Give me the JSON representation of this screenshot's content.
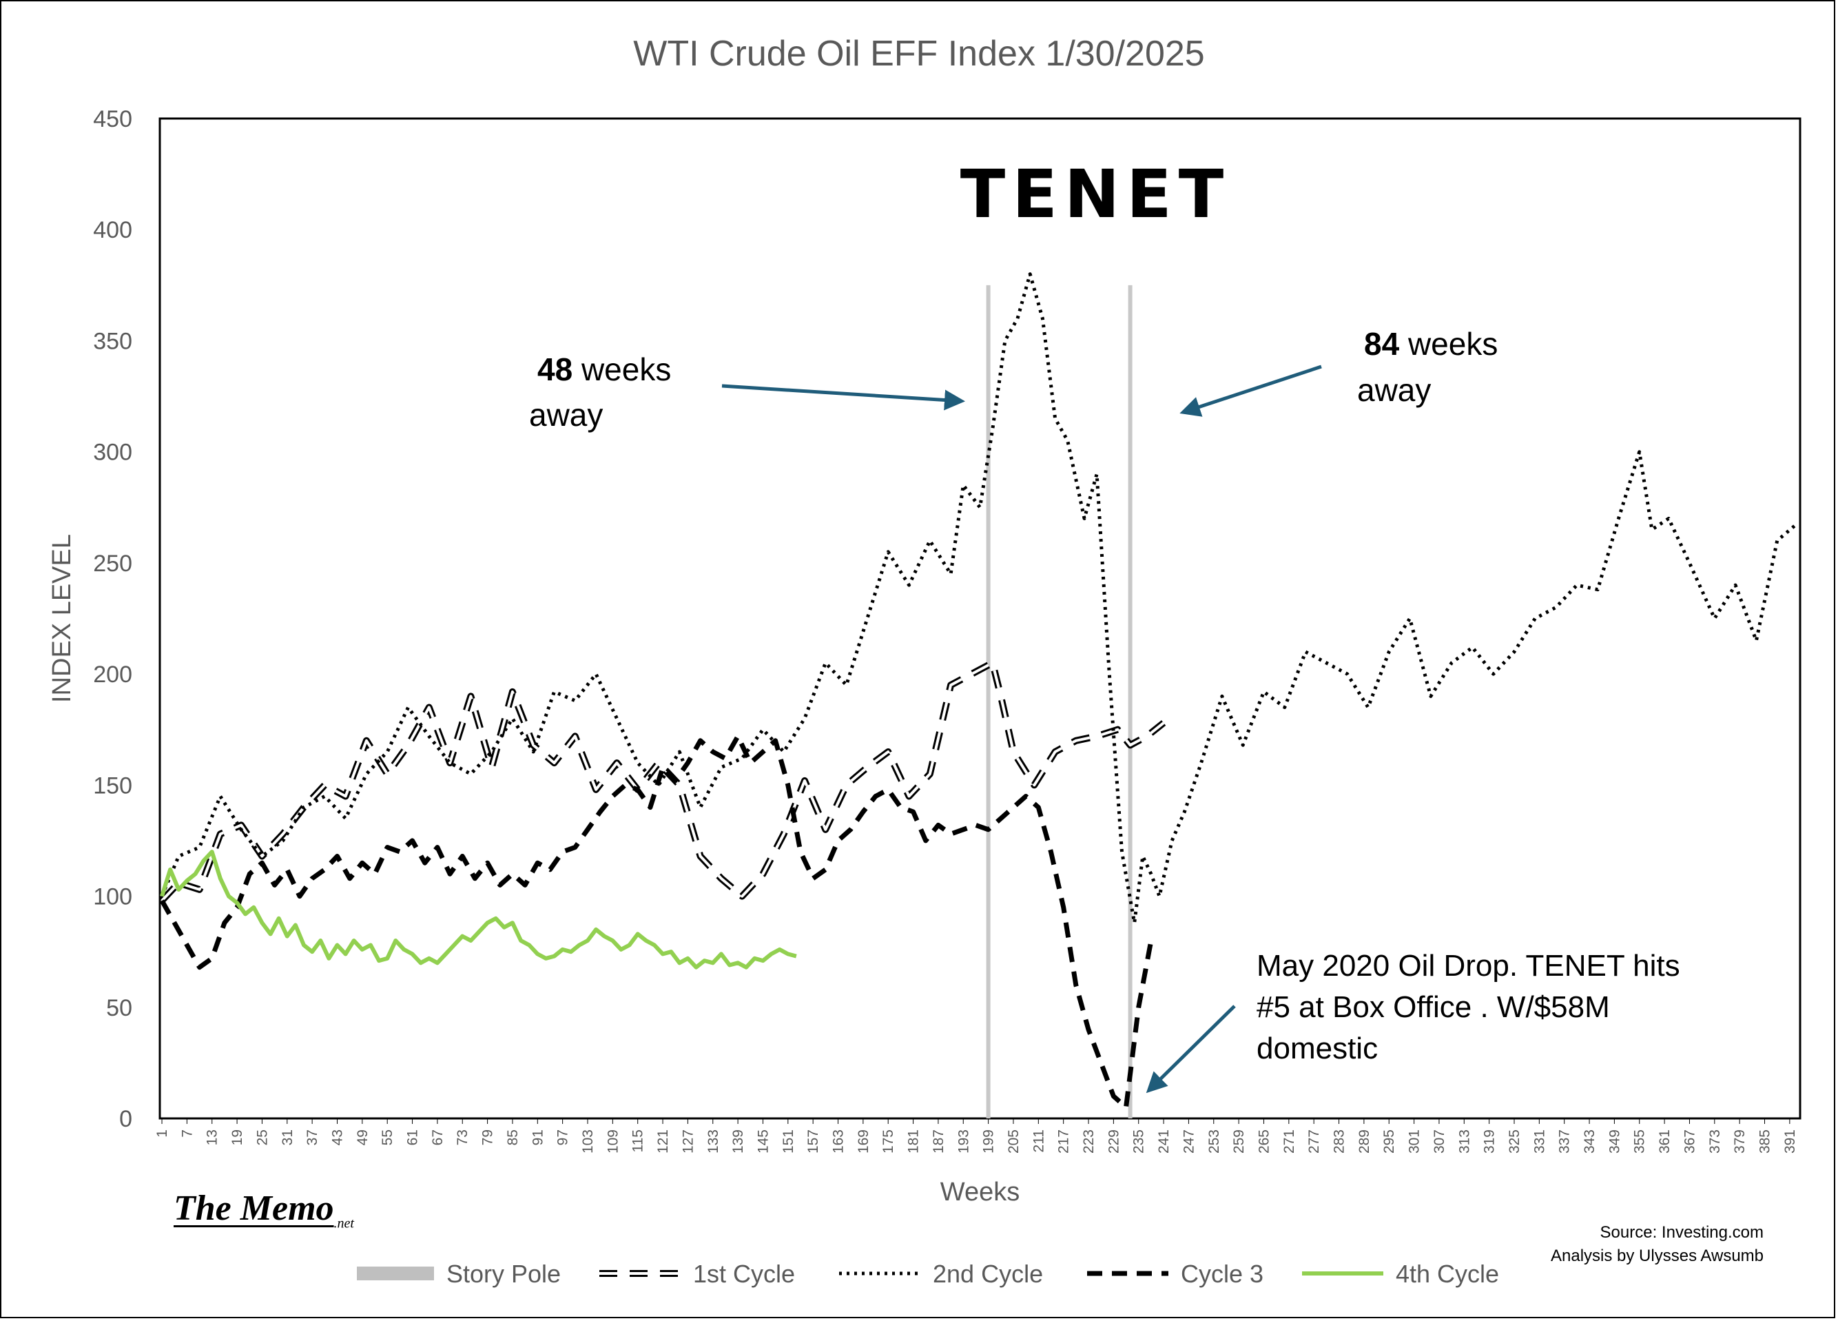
{
  "chart_data": {
    "type": "line",
    "title": "WTI Crude Oil EFF Index 1/30/2025",
    "xlabel": "Weeks",
    "ylabel": "INDEX LEVEL",
    "xlim": [
      1,
      393
    ],
    "ylim": [
      0,
      450
    ],
    "yticks": [
      0,
      50,
      100,
      150,
      200,
      250,
      300,
      350,
      400,
      450
    ],
    "xticks": [
      1,
      7,
      13,
      19,
      25,
      31,
      37,
      43,
      49,
      55,
      61,
      67,
      73,
      79,
      85,
      91,
      97,
      103,
      109,
      115,
      121,
      127,
      133,
      139,
      145,
      151,
      157,
      163,
      169,
      175,
      181,
      187,
      193,
      199,
      205,
      211,
      217,
      223,
      229,
      235,
      241,
      247,
      253,
      259,
      265,
      271,
      277,
      283,
      289,
      295,
      301,
      307,
      313,
      319,
      325,
      331,
      337,
      343,
      349,
      355,
      361,
      367,
      373,
      379,
      385,
      391
    ],
    "legend_position": "bottom",
    "grid": false,
    "story_poles": [
      199,
      233
    ],
    "series": [
      {
        "name": "1st Cycle",
        "color": "#000000",
        "style": "long-dash-hollow",
        "x": [
          1,
          5,
          10,
          15,
          20,
          25,
          30,
          35,
          40,
          45,
          50,
          55,
          60,
          65,
          70,
          75,
          80,
          85,
          90,
          95,
          100,
          105,
          110,
          115,
          120,
          125,
          130,
          135,
          140,
          145,
          150,
          155,
          160,
          165,
          170,
          175,
          180,
          185,
          190,
          195,
          200,
          202,
          205,
          210,
          215,
          220,
          225,
          230,
          233,
          237,
          241
        ],
        "y": [
          98,
          106,
          103,
          128,
          132,
          118,
          128,
          140,
          150,
          145,
          170,
          155,
          168,
          185,
          160,
          190,
          158,
          192,
          168,
          160,
          172,
          148,
          160,
          148,
          160,
          150,
          118,
          108,
          100,
          110,
          128,
          152,
          130,
          150,
          158,
          165,
          145,
          155,
          195,
          200,
          205,
          190,
          165,
          150,
          165,
          170,
          172,
          175,
          168,
          172,
          178
        ]
      },
      {
        "name": "2nd Cycle",
        "color": "#000000",
        "style": "dotted",
        "x": [
          1,
          5,
          10,
          15,
          20,
          25,
          30,
          35,
          40,
          45,
          50,
          55,
          60,
          65,
          70,
          75,
          80,
          85,
          90,
          95,
          100,
          105,
          110,
          115,
          120,
          125,
          130,
          135,
          140,
          145,
          150,
          155,
          160,
          165,
          170,
          175,
          180,
          185,
          190,
          193,
          197,
          200,
          203,
          206,
          209,
          212,
          215,
          218,
          222,
          225,
          228,
          231,
          234,
          236,
          238,
          240,
          243,
          246,
          250,
          255,
          260,
          265,
          270,
          275,
          280,
          285,
          290,
          295,
          300,
          305,
          310,
          315,
          320,
          325,
          330,
          335,
          340,
          345,
          350,
          355,
          358,
          362,
          367,
          373,
          378,
          383,
          388,
          393
        ],
        "y": [
          100,
          118,
          122,
          145,
          130,
          118,
          125,
          140,
          145,
          135,
          155,
          165,
          185,
          172,
          160,
          155,
          165,
          180,
          165,
          192,
          188,
          200,
          180,
          160,
          150,
          165,
          140,
          158,
          162,
          175,
          165,
          180,
          205,
          195,
          225,
          255,
          240,
          260,
          245,
          285,
          275,
          310,
          350,
          360,
          380,
          360,
          315,
          305,
          270,
          290,
          200,
          120,
          88,
          118,
          110,
          100,
          125,
          138,
          160,
          190,
          168,
          192,
          185,
          210,
          205,
          200,
          185,
          210,
          225,
          190,
          205,
          212,
          200,
          210,
          225,
          230,
          240,
          238,
          270,
          300,
          265,
          270,
          250,
          225,
          240,
          215,
          260,
          268
        ]
      },
      {
        "name": "Cycle 3",
        "color": "#000000",
        "style": "dashed-bold",
        "x": [
          1,
          4,
          7,
          10,
          13,
          16,
          19,
          22,
          25,
          28,
          31,
          34,
          37,
          40,
          43,
          46,
          49,
          52,
          55,
          58,
          61,
          64,
          67,
          70,
          73,
          76,
          79,
          82,
          85,
          88,
          91,
          94,
          97,
          100,
          103,
          106,
          109,
          112,
          115,
          118,
          121,
          124,
          127,
          130,
          133,
          136,
          139,
          142,
          145,
          148,
          151,
          154,
          157,
          160,
          163,
          166,
          169,
          172,
          175,
          178,
          181,
          184,
          187,
          190,
          193,
          196,
          199,
          202,
          205,
          208,
          211,
          214,
          217,
          220,
          223,
          226,
          229,
          232,
          235,
          238
        ],
        "y": [
          98,
          88,
          78,
          68,
          72,
          88,
          95,
          110,
          115,
          105,
          112,
          100,
          108,
          112,
          118,
          108,
          115,
          110,
          122,
          120,
          125,
          115,
          122,
          110,
          118,
          108,
          115,
          105,
          110,
          105,
          115,
          112,
          120,
          122,
          130,
          138,
          145,
          150,
          148,
          140,
          158,
          152,
          160,
          170,
          165,
          162,
          172,
          160,
          165,
          170,
          150,
          120,
          108,
          112,
          125,
          130,
          138,
          145,
          148,
          140,
          138,
          125,
          132,
          128,
          130,
          132,
          130,
          135,
          140,
          145,
          140,
          120,
          95,
          60,
          40,
          25,
          10,
          5,
          50,
          80
        ]
      },
      {
        "name": "4th Cycle",
        "color": "#92d050",
        "style": "solid",
        "x": [
          1,
          3,
          5,
          7,
          9,
          11,
          13,
          15,
          17,
          19,
          21,
          23,
          25,
          27,
          29,
          31,
          33,
          35,
          37,
          39,
          41,
          43,
          45,
          47,
          49,
          51,
          53,
          55,
          57,
          59,
          61,
          63,
          65,
          67,
          69,
          71,
          73,
          75,
          77,
          79,
          81,
          83,
          85,
          87,
          89,
          91,
          93,
          95,
          97,
          99,
          101,
          103,
          105,
          107,
          109,
          111,
          113,
          115,
          117,
          119,
          121,
          123,
          125,
          127,
          129,
          131,
          133,
          135,
          137,
          139,
          141,
          143,
          145,
          147,
          149,
          151,
          153
        ],
        "y": [
          100,
          112,
          103,
          107,
          110,
          116,
          120,
          108,
          100,
          97,
          92,
          95,
          88,
          83,
          90,
          82,
          87,
          78,
          75,
          80,
          72,
          78,
          74,
          80,
          76,
          78,
          71,
          72,
          80,
          76,
          74,
          70,
          72,
          70,
          74,
          78,
          82,
          80,
          84,
          88,
          90,
          86,
          88,
          80,
          78,
          74,
          72,
          73,
          76,
          75,
          78,
          80,
          85,
          82,
          80,
          76,
          78,
          83,
          80,
          78,
          74,
          75,
          70,
          72,
          68,
          71,
          70,
          74,
          69,
          70,
          68,
          72,
          71,
          74,
          76,
          74,
          73
        ]
      }
    ],
    "annotations": [
      {
        "type": "logo",
        "text": "TENET"
      },
      {
        "line1_bold": "48",
        "line1_rest": " weeks",
        "line2": "away"
      },
      {
        "line1_bold": "84",
        "line1_rest": " weeks",
        "line2": "away"
      },
      {
        "lines": [
          "May 2020 Oil Drop. TENET hits",
          "#5 at Box Office . W/$58M",
          "domestic"
        ]
      }
    ],
    "legend": [
      {
        "name": "Story Pole",
        "color": "#bfbfbf",
        "style": "thick-solid"
      },
      {
        "name": "1st Cycle",
        "color": "#000000",
        "style": "long-dash-hollow"
      },
      {
        "name": "2nd Cycle",
        "color": "#000000",
        "style": "dotted"
      },
      {
        "name": "Cycle 3",
        "color": "#000000",
        "style": "dashed-bold"
      },
      {
        "name": "4th Cycle",
        "color": "#92d050",
        "style": "solid"
      }
    ],
    "arrow_color": "#1f5c7a",
    "axis_text_color": "#595959"
  },
  "logo": {
    "main": "The Memo",
    "suffix": ".net"
  },
  "source": {
    "line1": "Source: Investing.com",
    "line2": "Analysis by Ulysses Awsumb"
  }
}
